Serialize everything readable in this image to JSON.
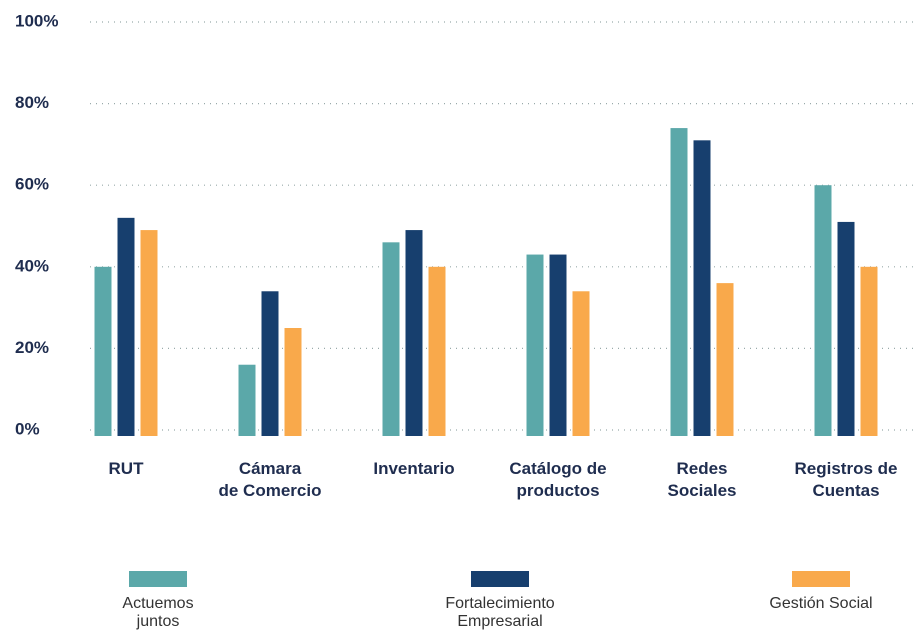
{
  "chart_data": {
    "type": "bar",
    "categories": [
      "RUT",
      "Cámara\nde Comercio",
      "Inventario",
      "Catálogo de\nproductos",
      "Redes\nSociales",
      "Registros de\nCuentas"
    ],
    "series": [
      {
        "name": "Actuemos\njuntos",
        "color": "#5ba8a9",
        "values": [
          40,
          16,
          46,
          43,
          74,
          60
        ]
      },
      {
        "name": "Fortalecimiento\nEmpresarial",
        "color": "#173f6e",
        "values": [
          52,
          34,
          49,
          43,
          71,
          51
        ]
      },
      {
        "name": "Gestión Social",
        "color": "#f9a94b",
        "values": [
          49,
          25,
          40,
          34,
          36,
          40
        ]
      }
    ],
    "ylim": [
      0,
      100
    ],
    "yticks": [
      {
        "value": 0,
        "label": "0%"
      },
      {
        "value": 20,
        "label": "20%"
      },
      {
        "value": 40,
        "label": "40%"
      },
      {
        "value": 60,
        "label": "60%"
      },
      {
        "value": 80,
        "label": "80%"
      },
      {
        "value": 100,
        "label": "100%"
      }
    ],
    "grid": true
  }
}
